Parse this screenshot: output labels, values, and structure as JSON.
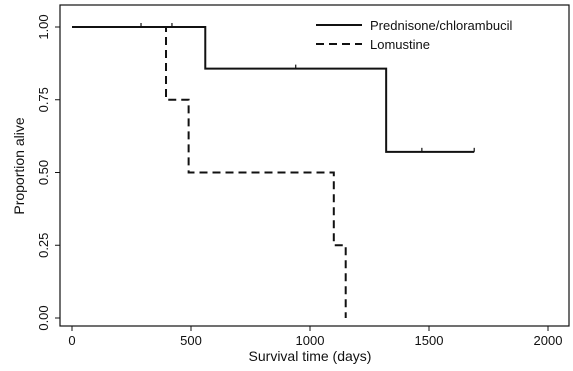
{
  "chart_data": {
    "type": "line",
    "subtype": "kaplan-meier-step",
    "xlabel": "Survival time (days)",
    "ylabel": "Proportion alive",
    "xlim": [
      0,
      2000
    ],
    "ylim": [
      0,
      1
    ],
    "xticks": [
      0,
      500,
      1000,
      1500,
      2000
    ],
    "yticks": [
      0,
      0.25,
      0.5,
      0.75,
      1
    ],
    "ytick_labels": [
      "0.00",
      "0.25",
      "0.50",
      "0.75",
      "1.00"
    ],
    "grid": false,
    "legend_position": "top-right",
    "series": [
      {
        "name": "Prednisone/chlorambucil",
        "line_style": "solid",
        "color": "#111111",
        "steps": [
          [
            0,
            1.0
          ],
          [
            560,
            0.857
          ],
          [
            1320,
            0.571
          ],
          [
            1690,
            0.571
          ]
        ],
        "censored_x": [
          290,
          420,
          940,
          1470,
          1690
        ]
      },
      {
        "name": "Lomustine",
        "line_style": "dashed",
        "color": "#111111",
        "steps": [
          [
            0,
            1.0
          ],
          [
            395,
            0.75
          ],
          [
            490,
            0.5
          ],
          [
            1100,
            0.25
          ],
          [
            1150,
            0.0
          ]
        ],
        "censored_x": []
      }
    ]
  }
}
